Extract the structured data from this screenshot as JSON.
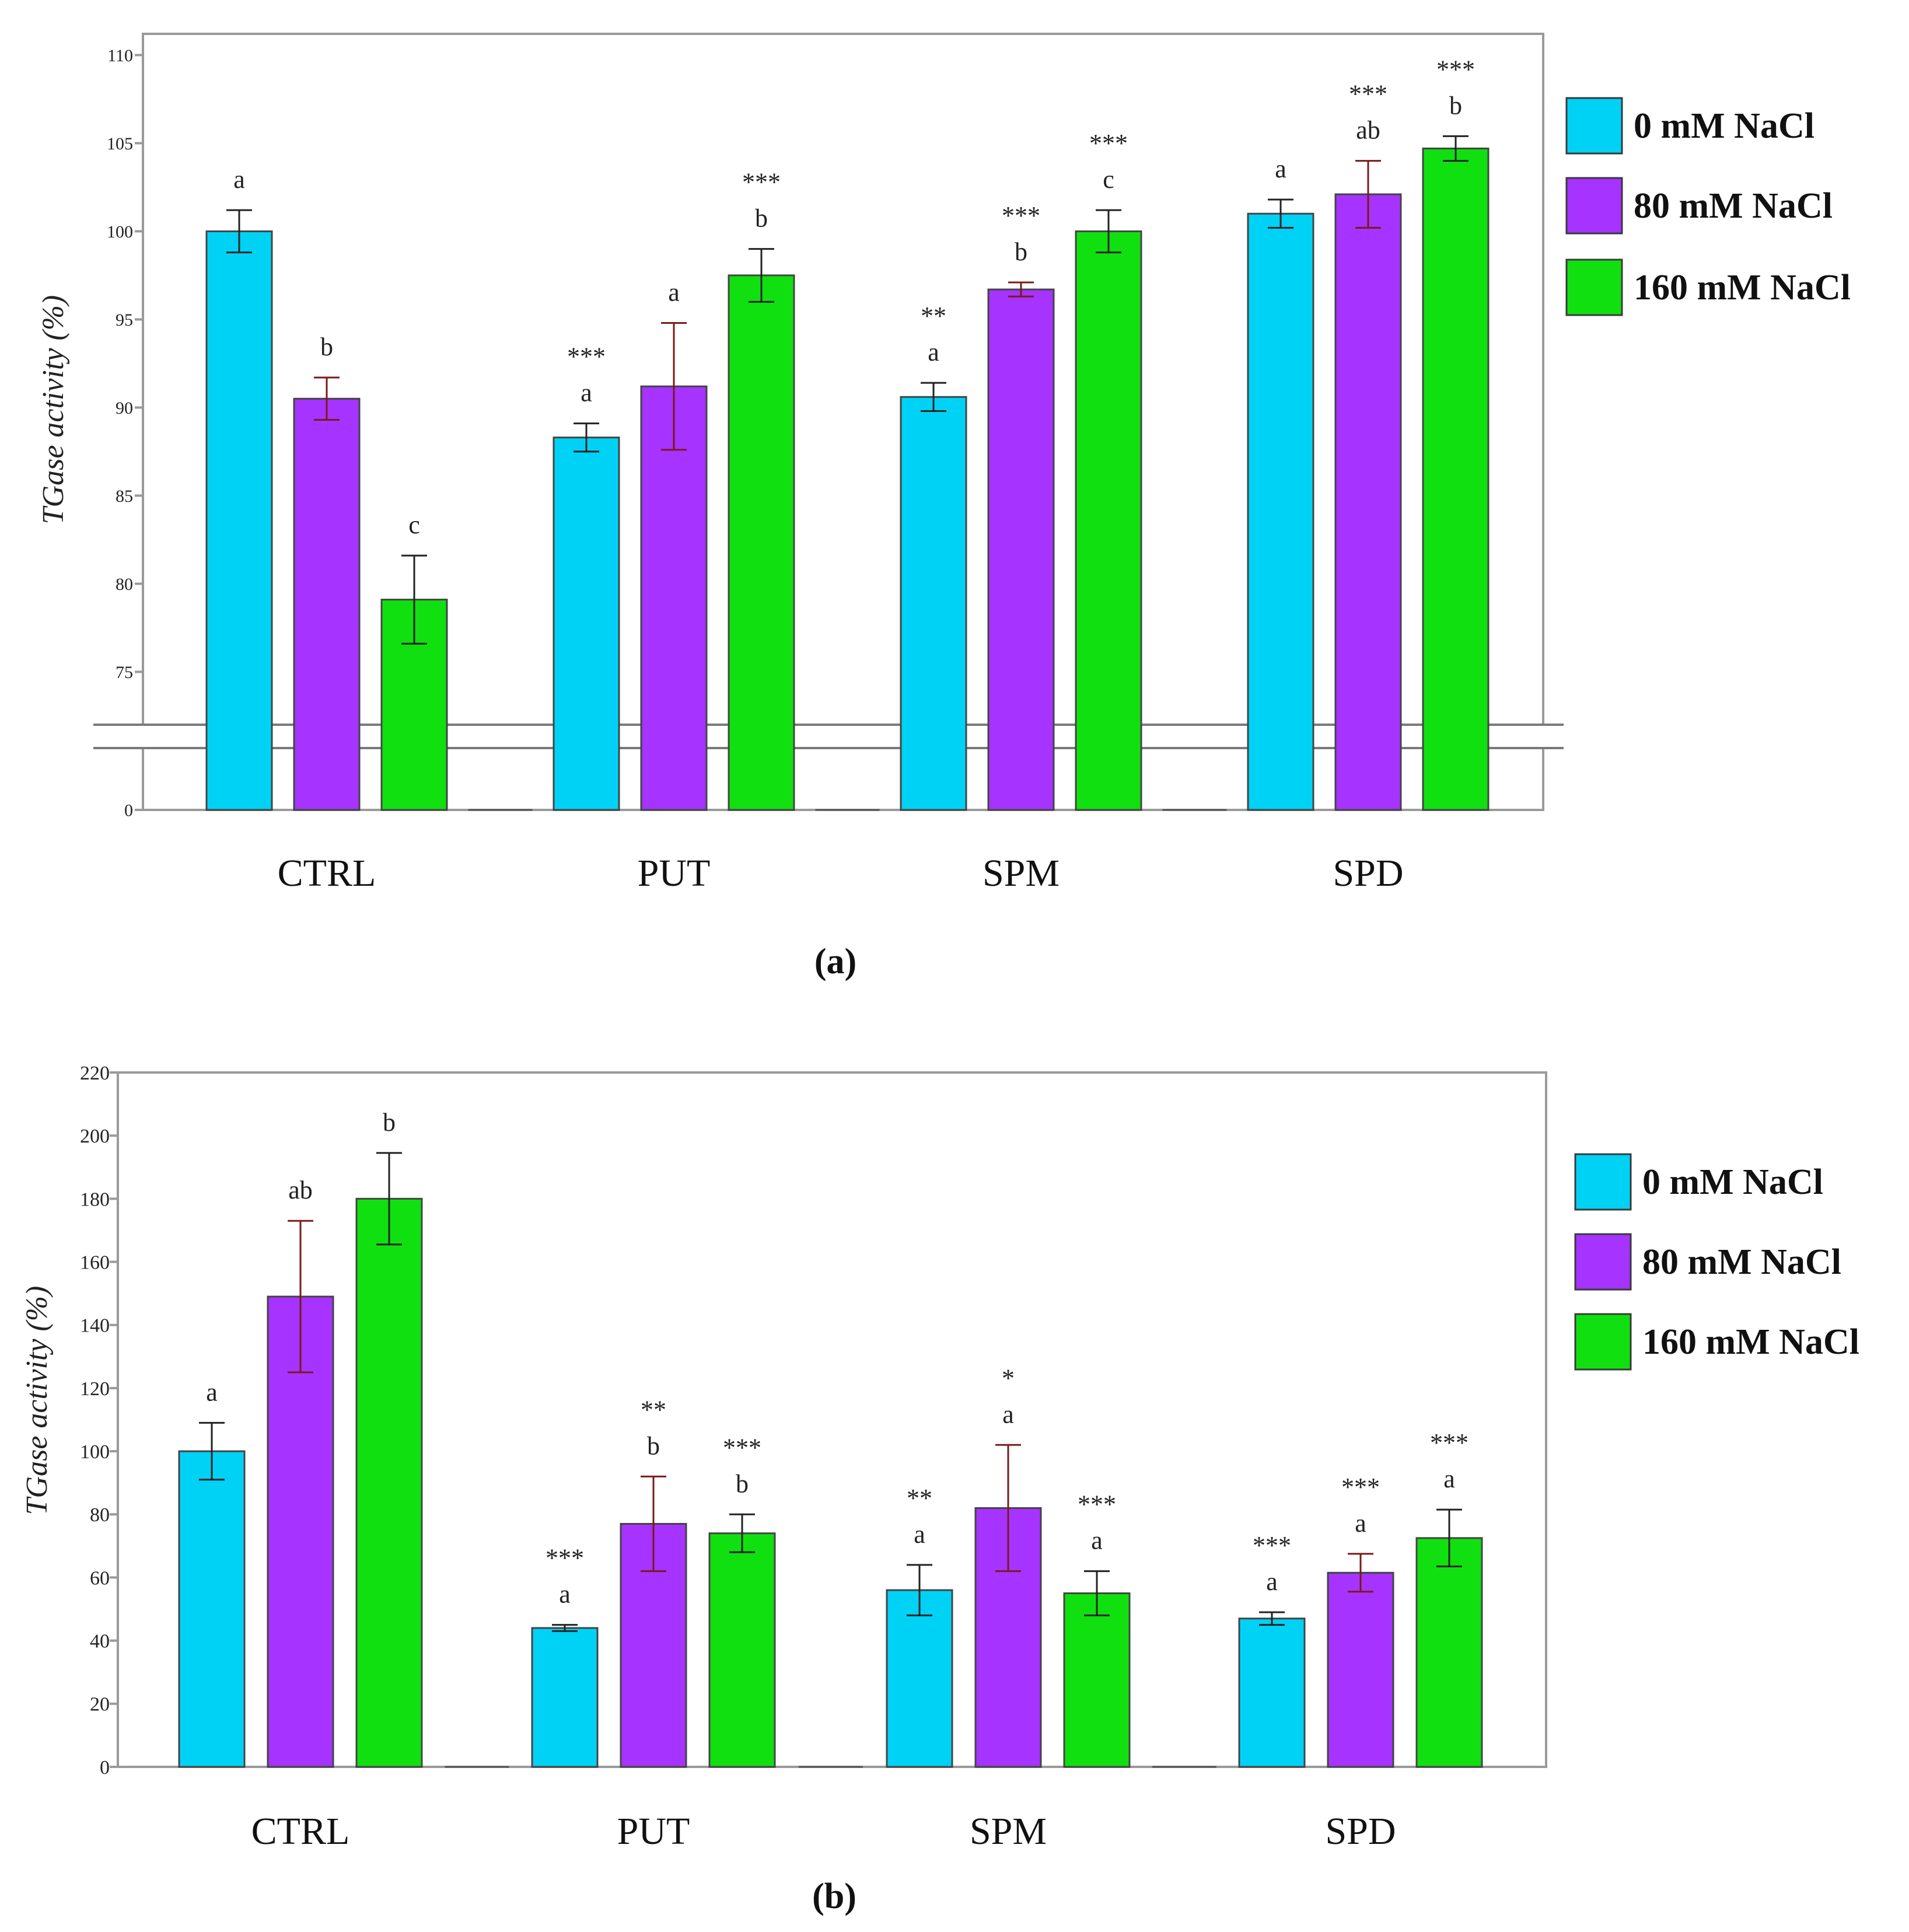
{
  "figure": {
    "colors": {
      "s0": "#00d2f5",
      "s1": "#a633ff",
      "s2": "#10e010",
      "axis": "#9a9a9a",
      "errbar": "#222222",
      "errbar_dark": "#7a1a1a"
    }
  },
  "legend": {
    "items": [
      "0 mM NaCl",
      "80 mM NaCl",
      "160 mM NaCl"
    ]
  },
  "chart_data": [
    {
      "type": "bar",
      "panel_label": "(a)",
      "ylabel": "TGase activity (%)",
      "xlabel": "",
      "ylim": [
        0,
        110
      ],
      "axis_break": [
        72,
        75
      ],
      "yticks": [
        "0",
        "75",
        "80",
        "85",
        "90",
        "95",
        "100",
        "105",
        "110"
      ],
      "categories": [
        "CTRL",
        "PUT",
        "SPM",
        "SPD"
      ],
      "series": [
        {
          "name": "0 mM NaCl",
          "values": [
            100,
            88.3,
            90.6,
            101
          ],
          "errors": [
            1.2,
            0.8,
            0.8,
            0.8
          ],
          "letters": [
            "a",
            "a",
            "a",
            "a"
          ],
          "stars": [
            "",
            "***",
            "**",
            ""
          ]
        },
        {
          "name": "80 mM NaCl",
          "values": [
            90.5,
            91.2,
            96.7,
            102.1
          ],
          "errors": [
            1.2,
            3.6,
            0.4,
            1.9
          ],
          "letters": [
            "b",
            "a",
            "b",
            "ab"
          ],
          "stars": [
            "",
            "",
            "***",
            "***"
          ]
        },
        {
          "name": "160 mM NaCl",
          "values": [
            79.1,
            97.5,
            100,
            104.7
          ],
          "errors": [
            2.5,
            1.5,
            1.2,
            0.7
          ],
          "letters": [
            "c",
            "b",
            "c",
            "b"
          ],
          "stars": [
            "",
            "***",
            "***",
            "***"
          ]
        }
      ]
    },
    {
      "type": "bar",
      "panel_label": "(b)",
      "ylabel": "TGase activity (%)",
      "xlabel": "",
      "ylim": [
        0,
        220
      ],
      "yticks": [
        "0",
        "20",
        "40",
        "60",
        "80",
        "100",
        "120",
        "140",
        "160",
        "180",
        "200",
        "220"
      ],
      "categories": [
        "CTRL",
        "PUT",
        "SPM",
        "SPD"
      ],
      "series": [
        {
          "name": "0 mM NaCl",
          "values": [
            100,
            44,
            56,
            47
          ],
          "errors": [
            9,
            1,
            8,
            2
          ],
          "letters": [
            "a",
            "a",
            "a",
            "a"
          ],
          "stars": [
            "",
            "***",
            "**",
            "***"
          ]
        },
        {
          "name": "80 mM NaCl",
          "values": [
            149,
            77,
            82,
            61.5
          ],
          "errors": [
            24,
            15,
            20,
            6
          ],
          "letters": [
            "ab",
            "b",
            "a",
            "a"
          ],
          "stars": [
            "",
            "**",
            "*",
            "***"
          ]
        },
        {
          "name": "160 mM NaCl",
          "values": [
            180,
            74,
            55,
            72.5
          ],
          "errors": [
            14.5,
            6,
            7,
            9
          ],
          "letters": [
            "b",
            "b",
            "a",
            "a"
          ],
          "stars": [
            "",
            "***",
            "***",
            "***"
          ]
        }
      ]
    }
  ]
}
